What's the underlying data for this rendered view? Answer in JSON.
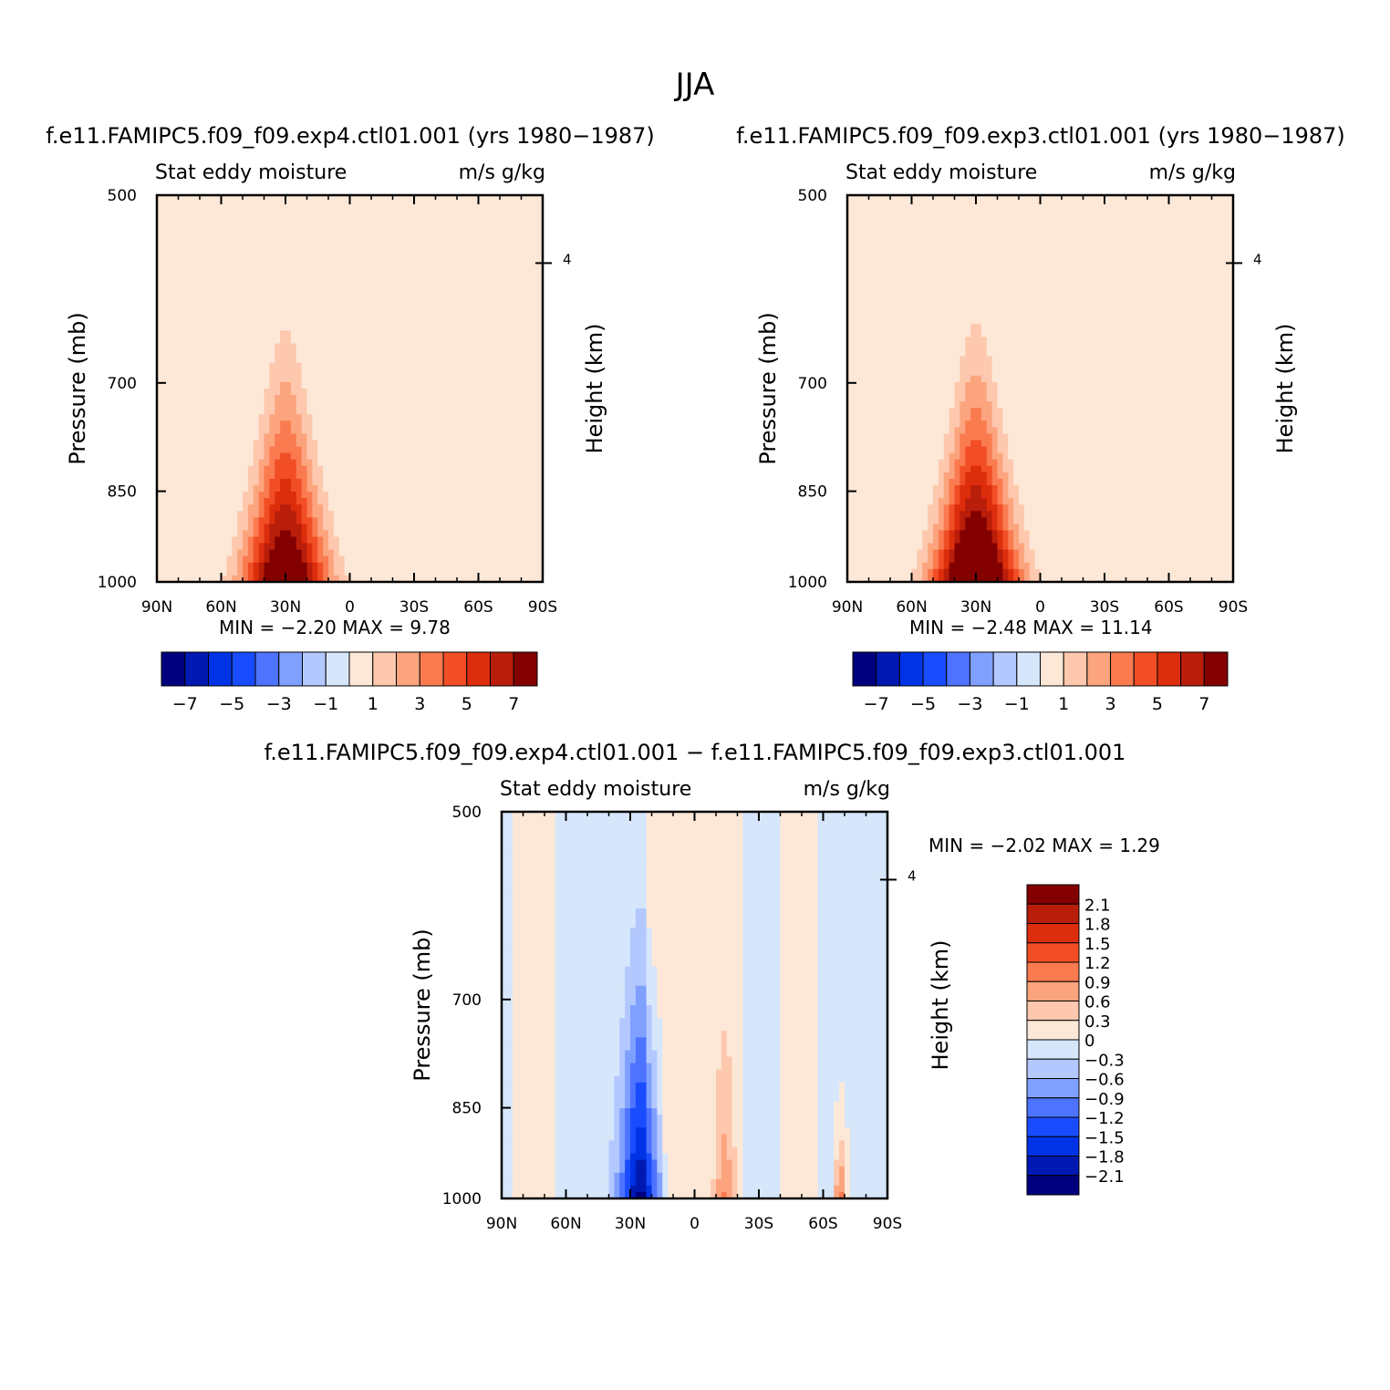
{
  "figure": {
    "title": "JJA",
    "panel_titles": [
      "f.e11.FAMIPC5.f09_f09.exp4.ctl01.001 (yrs 1980−1987)",
      "f.e11.FAMIPC5.f09_f09.exp3.ctl01.001 (yrs 1980−1987)",
      "f.e11.FAMIPC5.f09_f09.exp4.ctl01.001 − f.e11.FAMIPC5.f09_f09.exp3.ctl01.001"
    ]
  },
  "palette": {
    "full": [
      "#00007f",
      "#0019b3",
      "#0033e6",
      "#1a4cff",
      "#4d73ff",
      "#80a0ff",
      "#b3c8ff",
      "#d6e6fb",
      "#fde8d7",
      "#fdc8ad",
      "#fca47e",
      "#fa7b50",
      "#f24e25",
      "#dc2d0d",
      "#b81e0a",
      "#830000"
    ],
    "diff": [
      "#830000",
      "#b81e0a",
      "#dc2d0d",
      "#f24e25",
      "#fa7b50",
      "#fca47e",
      "#fdc8ad",
      "#fde8d7",
      "#d6e6fb",
      "#b3c8ff",
      "#80a0ff",
      "#4d73ff",
      "#1a4cff",
      "#0033e6",
      "#0019b3",
      "#00007f"
    ]
  },
  "chart_data": [
    {
      "type": "heatmap",
      "id": "exp4",
      "subtitle_left": "Stat eddy moisture",
      "subtitle_right": "m/s g/kg",
      "ylabel": "Pressure (mb)",
      "ylabel_right": "Height (km)",
      "right_ticks": [
        "4"
      ],
      "yticks": [
        "500",
        "700",
        "850",
        "1000"
      ],
      "xticks": [
        "90N",
        "60N",
        "30N",
        "0",
        "30S",
        "60S",
        "90S"
      ],
      "stats": "MIN =   −2.20   MAX =    9.78",
      "colorbar_labels": [
        "−7",
        "−5",
        "−3",
        "−1",
        "1",
        "3",
        "5",
        "7"
      ],
      "levels": [
        -7,
        -6,
        -5,
        -4,
        -3,
        -2,
        -1,
        0,
        1,
        2,
        3,
        4,
        5,
        6,
        7
      ],
      "min": -2.2,
      "max": 9.78,
      "max_lat": 30,
      "bg_value": -0.5
    },
    {
      "type": "heatmap",
      "id": "exp3",
      "subtitle_left": "Stat eddy moisture",
      "subtitle_right": "m/s g/kg",
      "ylabel": "Pressure (mb)",
      "ylabel_right": "Height (km)",
      "right_ticks": [
        "4"
      ],
      "yticks": [
        "500",
        "700",
        "850",
        "1000"
      ],
      "xticks": [
        "90N",
        "60N",
        "30N",
        "0",
        "30S",
        "60S",
        "90S"
      ],
      "stats": "MIN =   −2.48   MAX =   11.14",
      "colorbar_labels": [
        "−7",
        "−5",
        "−3",
        "−1",
        "1",
        "3",
        "5",
        "7"
      ],
      "levels": [
        -7,
        -6,
        -5,
        -4,
        -3,
        -2,
        -1,
        0,
        1,
        2,
        3,
        4,
        5,
        6,
        7
      ],
      "min": -2.48,
      "max": 11.14,
      "max_lat": 30,
      "bg_value": -0.5
    },
    {
      "type": "heatmap",
      "id": "diff",
      "subtitle_left": "Stat eddy moisture",
      "subtitle_right": "m/s g/kg",
      "ylabel": "Pressure (mb)",
      "ylabel_right": "Height (km)",
      "right_ticks": [
        "4"
      ],
      "yticks": [
        "500",
        "700",
        "850",
        "1000"
      ],
      "xticks": [
        "90N",
        "60N",
        "30N",
        "0",
        "30S",
        "60S",
        "90S"
      ],
      "stats": "MIN =   −2.02   MAX =    1.29",
      "colorbar_labels": [
        "2.1",
        "1.8",
        "1.5",
        "1.2",
        "0.9",
        "0.6",
        "0.3",
        "0",
        "−0.3",
        "−0.6",
        "−0.9",
        "−1.2",
        "−1.5",
        "−1.8",
        "−2.1"
      ],
      "levels": [
        -2.1,
        -1.8,
        -1.5,
        -1.2,
        -0.9,
        -0.6,
        -0.3,
        0,
        0.3,
        0.6,
        0.9,
        1.2,
        1.5,
        1.8,
        2.1
      ],
      "min": -2.02,
      "max": 1.29,
      "min_lat": 25
    }
  ]
}
